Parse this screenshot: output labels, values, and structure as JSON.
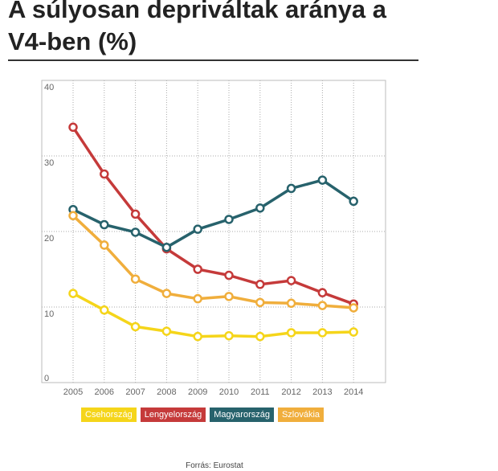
{
  "header": {
    "title": "A súlyosan depriváltak aránya a V4-ben (%)"
  },
  "chart_data": {
    "type": "line",
    "title": "A súlyosan depriváltak aránya a V4-ben (%)",
    "xlabel": "",
    "ylabel": "",
    "x": [
      "2005",
      "2006",
      "2007",
      "2008",
      "2009",
      "2010",
      "2011",
      "2012",
      "2013",
      "2014"
    ],
    "ylim": [
      0,
      40
    ],
    "yticks": [
      "0",
      "10",
      "20",
      "30",
      "40"
    ],
    "grid": true,
    "legend_position": "bottom",
    "series": [
      {
        "name": "Csehország",
        "color": "#f5d51a",
        "values": [
          11.8,
          9.6,
          7.4,
          6.8,
          6.1,
          6.2,
          6.1,
          6.6,
          6.6,
          6.7
        ]
      },
      {
        "name": "Lengyelország",
        "color": "#c53a3a",
        "values": [
          33.8,
          27.6,
          22.3,
          17.7,
          15.0,
          14.2,
          13.0,
          13.5,
          11.9,
          10.4
        ]
      },
      {
        "name": "Magyarország",
        "color": "#27626c",
        "values": [
          22.9,
          20.9,
          19.9,
          17.9,
          20.3,
          21.6,
          23.1,
          25.7,
          26.8,
          24.0
        ]
      },
      {
        "name": "Szlovákia",
        "color": "#f0ae3c",
        "values": [
          22.1,
          18.2,
          13.7,
          11.8,
          11.1,
          11.4,
          10.6,
          10.5,
          10.2,
          9.9
        ]
      }
    ]
  },
  "footer": {
    "source": "Forrás: Eurostat"
  }
}
